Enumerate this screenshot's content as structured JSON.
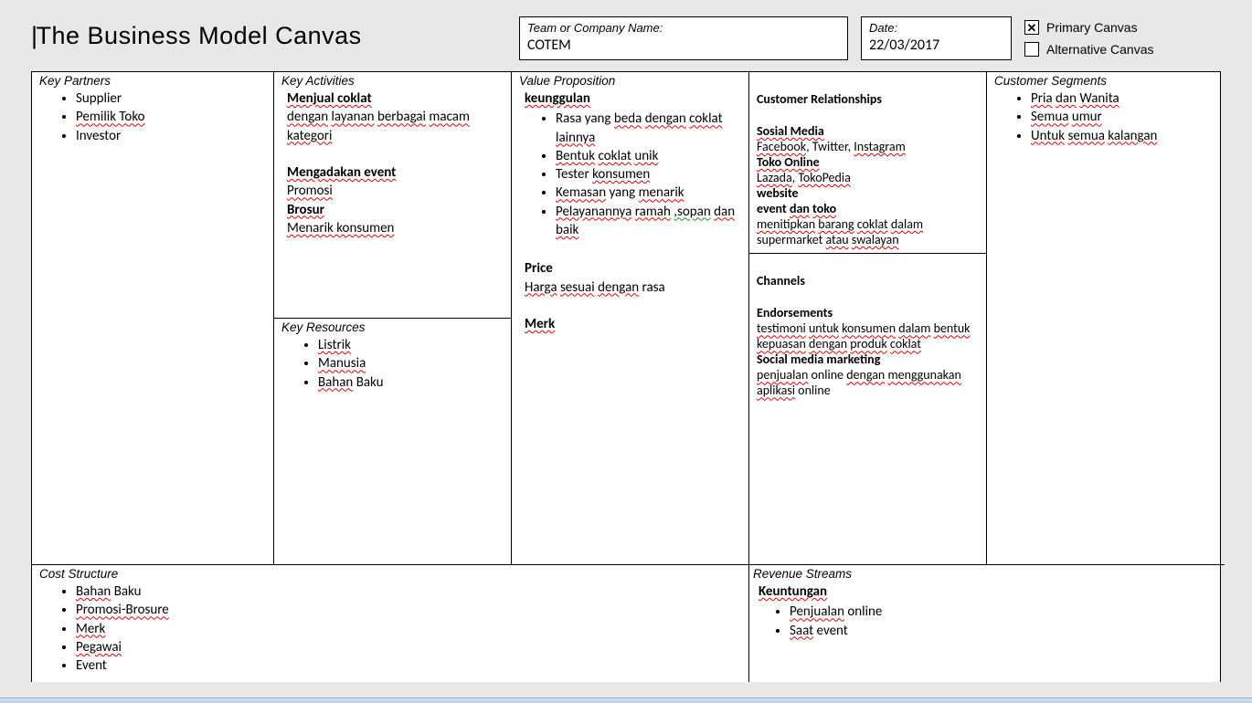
{
  "title": "The Business Model Canvas",
  "header": {
    "team_label": "Team or Company Name:",
    "team_value": "COTEM",
    "date_label": "Date:",
    "date_value": "22/03/2017",
    "primary_label": "Primary Canvas",
    "alternative_label": "Alternative Canvas",
    "primary_checked": true,
    "alternative_checked": false
  },
  "sections": {
    "key_partners": {
      "heading": "Key Partners",
      "items": [
        "Supplier",
        "Pemilik Toko",
        "Investor"
      ]
    },
    "key_activities": {
      "heading": "Key Activities",
      "lines": [
        {
          "text": "Menjual coklat",
          "bold": true,
          "sp": true
        },
        {
          "text": "dengan layanan berbagai macam kategori",
          "sp": true
        },
        {
          "text": ""
        },
        {
          "text": "Mengadakan event",
          "bold": true,
          "sp": true
        },
        {
          "text": "Promosi",
          "sp": true
        },
        {
          "text": "Brosur",
          "bold": true,
          "sp": true
        },
        {
          "text": "Menarik konsumen",
          "sp": true
        }
      ]
    },
    "key_resources": {
      "heading": "Key Resources",
      "items": [
        "Listrik",
        "Manusia",
        "Bahan Baku"
      ]
    },
    "value_proposition": {
      "heading": "Value Proposition",
      "sub1": "keunggulan",
      "bullets": [
        "Rasa yang beda dengan coklat lainnya",
        "Bentuk coklat unik",
        "Tester konsumen",
        "Kemasan yang menarik",
        "Pelayanannya ramah ,sopan dan baik"
      ],
      "sub2": "Price",
      "price_text": "Harga sesuai dengan rasa",
      "sub3": "Merk"
    },
    "customer_relationships": {
      "heading": "Customer Relationships",
      "groups": [
        {
          "title": "Sosial Media",
          "text": "Facebook, Twitter, Instagram"
        },
        {
          "title": "Toko Online",
          "text": "Lazada, TokoPedia"
        },
        {
          "title": "website",
          "text": ""
        },
        {
          "title": "event dan toko",
          "text": "menitipkan barang coklat dalam supermarket atau swalayan"
        }
      ]
    },
    "channels": {
      "heading": "Channels",
      "groups": [
        {
          "title": "Endorsements",
          "text": "testimoni untuk konsumen dalam bentuk kepuasan dengan produk coklat"
        },
        {
          "title": "Social media marketing",
          "text": "penjualan online dengan menggunakan aplikasi online"
        }
      ]
    },
    "customer_segments": {
      "heading": "Customer Segments",
      "items": [
        "Pria dan Wanita",
        "Semua umur",
        "Untuk semua kalangan"
      ]
    },
    "cost_structure": {
      "heading": "Cost Structure",
      "items": [
        "Bahan Baku",
        "Promosi-Brosure",
        "Merk",
        "Pegawai",
        "Event"
      ]
    },
    "revenue_streams": {
      "heading": "Revenue Streams",
      "sub": "Keuntungan",
      "items": [
        "Penjualan online",
        "Saat event"
      ]
    }
  },
  "style": {
    "page_bg": "#e8e8e8",
    "cell_bg": "#ffffff",
    "border_color": "#000000",
    "spellcheck_color": "#d00000",
    "font_body": "Segoe UI",
    "title_fontsize": 27,
    "heading_fontsize": 13.5,
    "body_fontsize": 15,
    "canvas_cols": [
      265,
      260,
      260,
      260,
      260
    ],
    "canvas_rows_top": [
      270,
      270
    ]
  }
}
